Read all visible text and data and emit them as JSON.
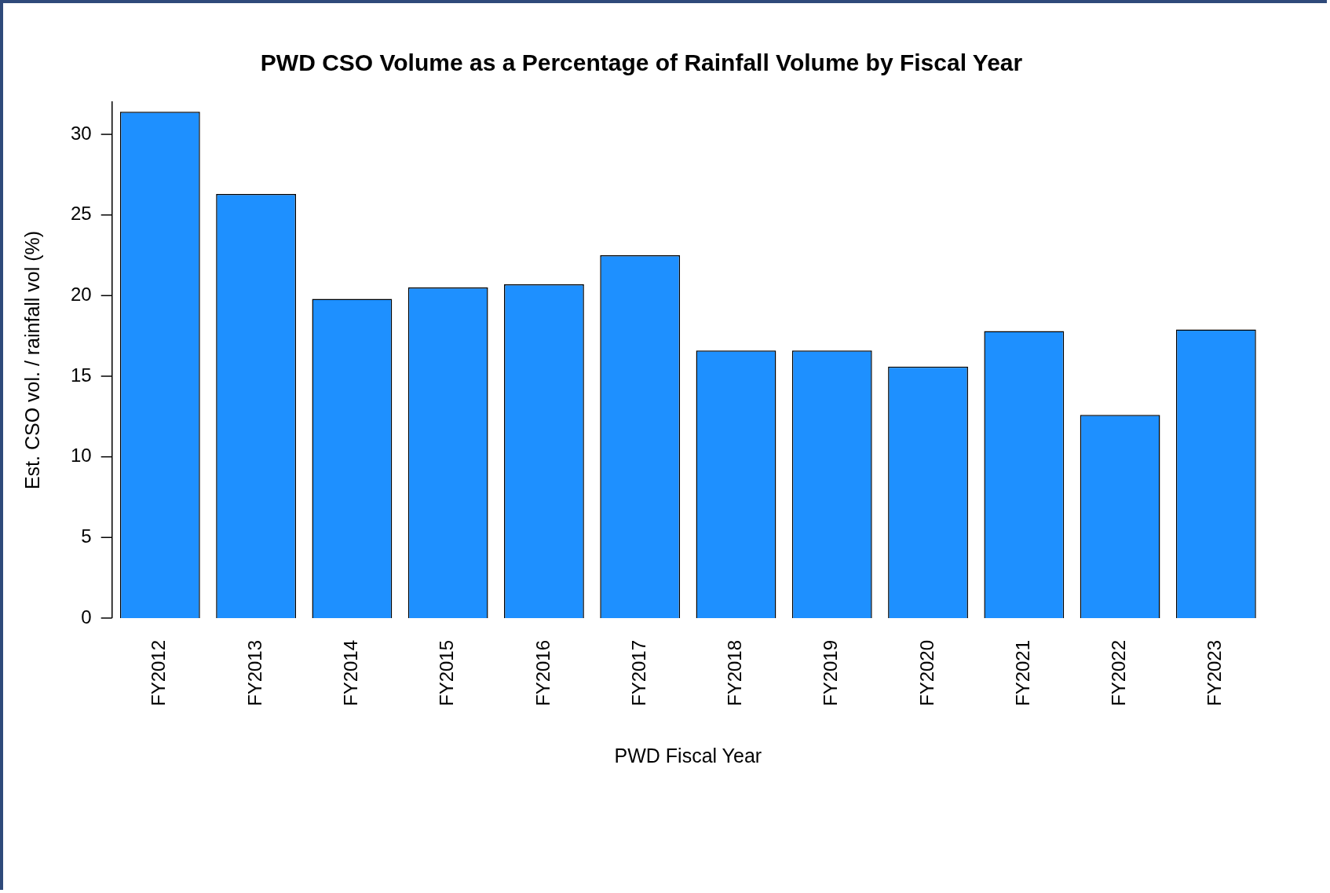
{
  "chart_data": {
    "type": "bar",
    "title": "PWD CSO Volume as a Percentage of Rainfall Volume by Fiscal Year",
    "xlabel": "PWD Fiscal Year",
    "ylabel": "Est. CSO vol. / rainfall vol (%)",
    "categories": [
      "FY2012",
      "FY2013",
      "FY2014",
      "FY2015",
      "FY2016",
      "FY2017",
      "FY2018",
      "FY2019",
      "FY2020",
      "FY2021",
      "FY2022",
      "FY2023"
    ],
    "values": [
      31.4,
      26.3,
      19.8,
      20.5,
      20.7,
      22.5,
      16.6,
      16.6,
      15.6,
      17.8,
      12.6,
      17.9
    ],
    "color": "#1e90ff",
    "ylim": [
      0,
      32
    ],
    "yticks": [
      0,
      5,
      10,
      15,
      20,
      25,
      30
    ]
  }
}
